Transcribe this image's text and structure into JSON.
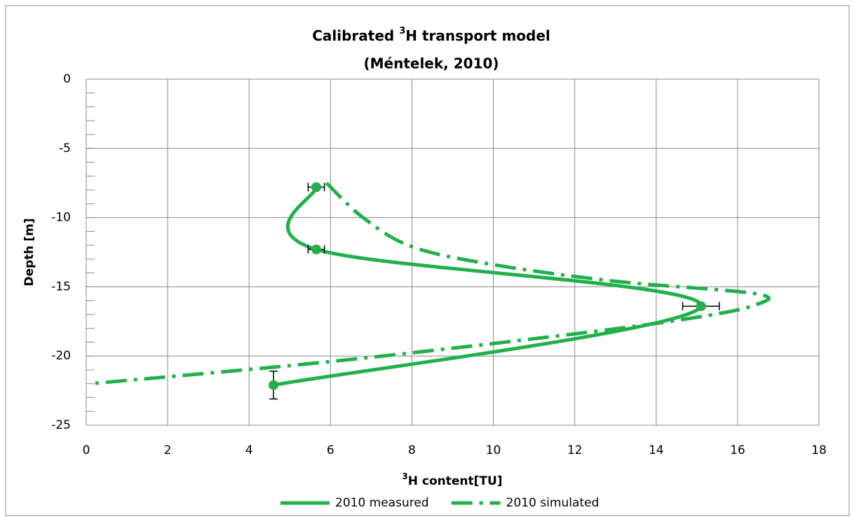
{
  "chart_data": {
    "type": "line",
    "title": [
      "Calibrated ",
      "3",
      "H transport model"
    ],
    "subtitle": "(Méntelek, 2010)",
    "x_label": [
      "3",
      "H  content[TU]"
    ],
    "y_label": "Depth [m]",
    "xlim": [
      0,
      18
    ],
    "xticks": [
      0,
      2,
      4,
      6,
      8,
      10,
      12,
      14,
      16,
      18
    ],
    "ylim": [
      -25,
      0
    ],
    "yticks": [
      0,
      -5,
      -10,
      -15,
      -20,
      -25
    ],
    "grid": true,
    "legend": "bottom",
    "series": [
      {
        "name": "2010 measured",
        "color": "#22b04b",
        "style": "solid",
        "markers": true,
        "x": [
          5.65,
          5.65,
          15.1,
          4.6
        ],
        "values": [
          -7.8,
          -12.3,
          -16.4,
          -22.1
        ],
        "xerr": [
          0.2,
          0.2,
          0.45,
          null
        ],
        "yerr": [
          null,
          null,
          null,
          1.0
        ]
      },
      {
        "name": "2010 simulated",
        "color": "#22b04b",
        "style": "dashdot",
        "markers": false,
        "x": [
          5.9,
          6.8,
          8,
          10,
          13,
          16.45,
          16.45,
          15,
          12,
          6,
          0.1
        ],
        "values": [
          -7.5,
          -10,
          -12.1,
          -13.4,
          -14.6,
          -15.5,
          -16.3,
          -17.2,
          -18.4,
          -20.4,
          -22
        ]
      }
    ]
  }
}
